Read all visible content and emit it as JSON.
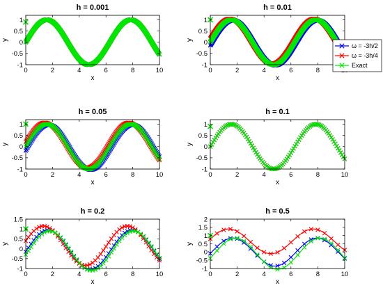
{
  "colors": {
    "omega_3h2": "#0000ff",
    "omega_3h4": "#ff0000",
    "exact": "#00e600",
    "axis": "#000000"
  },
  "legend": {
    "placement": "right-of-top-right-panel",
    "entries": [
      "ω = -3h/2",
      "ω = -3h/4",
      "Exact"
    ]
  },
  "chart_data": [
    {
      "type": "line",
      "title": "h = 0.001",
      "xlabel": "x",
      "ylabel": "y",
      "xlim": [
        0,
        10
      ],
      "ylim": [
        -1,
        1.2
      ],
      "xticks": [
        0,
        2,
        4,
        6,
        8,
        10
      ],
      "yticks": [
        -1,
        -0.5,
        0,
        0.5,
        1
      ],
      "h": 0.001,
      "markers_per_unit": 120,
      "ic_marker": 0.9,
      "series": [
        {
          "name": "ω = -3h/2",
          "offset": 0.0,
          "phase": 0.0,
          "amplitude": 1.0
        },
        {
          "name": "ω = -3h/4",
          "offset": 0.0,
          "phase": 0.0,
          "amplitude": 1.0
        },
        {
          "name": "Exact",
          "offset": 0.0,
          "phase": 0.0,
          "amplitude": 1.0
        }
      ]
    },
    {
      "type": "line",
      "title": "h = 0.01",
      "xlabel": "x",
      "ylabel": "y",
      "xlim": [
        0,
        10
      ],
      "ylim": [
        -1,
        1.2
      ],
      "xticks": [
        0,
        2,
        4,
        6,
        8,
        10
      ],
      "yticks": [
        -1,
        -0.5,
        0,
        0.5,
        1
      ],
      "h": 0.01,
      "markers_per_unit": 80,
      "ic_marker": 1.0,
      "series": [
        {
          "name": "ω = -3h/2",
          "offset": -0.02,
          "phase": -0.12,
          "amplitude": 1.0
        },
        {
          "name": "ω = -3h/4",
          "offset": 0.04,
          "phase": 0.12,
          "amplitude": 1.0
        },
        {
          "name": "Exact",
          "offset": 0.0,
          "phase": 0.0,
          "amplitude": 1.0
        }
      ]
    },
    {
      "type": "line",
      "title": "h = 0.05",
      "xlabel": "x",
      "ylabel": "y",
      "xlim": [
        0,
        10
      ],
      "ylim": [
        -1,
        1.2
      ],
      "xticks": [
        0,
        2,
        4,
        6,
        8,
        10
      ],
      "yticks": [
        -1,
        -0.5,
        0,
        0.5,
        1
      ],
      "h": 0.05,
      "markers_per_unit": 20,
      "ic_marker": 1.0,
      "series": [
        {
          "name": "ω = -3h/2",
          "offset": -0.03,
          "phase": -0.15,
          "amplitude": 1.0
        },
        {
          "name": "ω = -3h/4",
          "offset": 0.06,
          "phase": 0.15,
          "amplitude": 1.0
        },
        {
          "name": "Exact",
          "offset": 0.0,
          "phase": 0.0,
          "amplitude": 1.0
        }
      ]
    },
    {
      "type": "line",
      "title": "h = 0.1",
      "xlabel": "x",
      "ylabel": "y",
      "xlim": [
        0,
        10
      ],
      "ylim": [
        -1,
        1.2
      ],
      "xticks": [
        0,
        2,
        4,
        6,
        8,
        10
      ],
      "yticks": [
        -1,
        -0.5,
        0,
        0.5,
        1
      ],
      "h": 0.1,
      "markers_per_unit": 10,
      "ic_marker": 0.9,
      "series": [
        {
          "name": "ω = -3h/2",
          "offset": 0.0,
          "phase": 0.0,
          "amplitude": 1.0
        },
        {
          "name": "ω = -3h/4",
          "offset": 0.0,
          "phase": 0.0,
          "amplitude": 1.0
        },
        {
          "name": "Exact",
          "offset": 0.0,
          "phase": 0.0,
          "amplitude": 1.0
        }
      ]
    },
    {
      "type": "line",
      "title": "h = 0.2",
      "xlabel": "x",
      "ylabel": "y",
      "xlim": [
        0,
        10
      ],
      "ylim": [
        -1,
        1.5
      ],
      "xticks": [
        0,
        2,
        4,
        6,
        8,
        10
      ],
      "yticks": [
        -1,
        -0.5,
        0,
        0.5,
        1,
        1.5
      ],
      "h": 0.2,
      "markers_per_unit": 5,
      "ic_marker": 1.0,
      "series": [
        {
          "name": "ω = -3h/2",
          "offset": -0.05,
          "phase": -0.1,
          "amplitude": 1.0
        },
        {
          "name": "ω = -3h/4",
          "offset": 0.15,
          "phase": 0.25,
          "amplitude": 1.0
        },
        {
          "name": "Exact",
          "offset": -0.1,
          "phase": -0.2,
          "amplitude": 1.0
        }
      ]
    },
    {
      "type": "line",
      "title": "h = 0.5",
      "xlabel": "x",
      "ylabel": "y",
      "xlim": [
        0,
        10
      ],
      "ylim": [
        -1,
        2
      ],
      "xticks": [
        0,
        2,
        4,
        6,
        8,
        10
      ],
      "yticks": [
        -1,
        -0.5,
        0,
        0.5,
        1,
        1.5,
        2
      ],
      "h": 0.5,
      "markers_per_unit": 2,
      "ic_marker": 1.0,
      "series": [
        {
          "name": "ω = -3h/2",
          "offset": 0.0,
          "phase": -0.1,
          "amplitude": 0.85
        },
        {
          "name": "ω = -3h/4",
          "offset": 0.65,
          "phase": 0.2,
          "amplitude": 0.75
        },
        {
          "name": "Exact",
          "offset": -0.1,
          "phase": -0.3,
          "amplitude": 0.95
        }
      ]
    }
  ]
}
